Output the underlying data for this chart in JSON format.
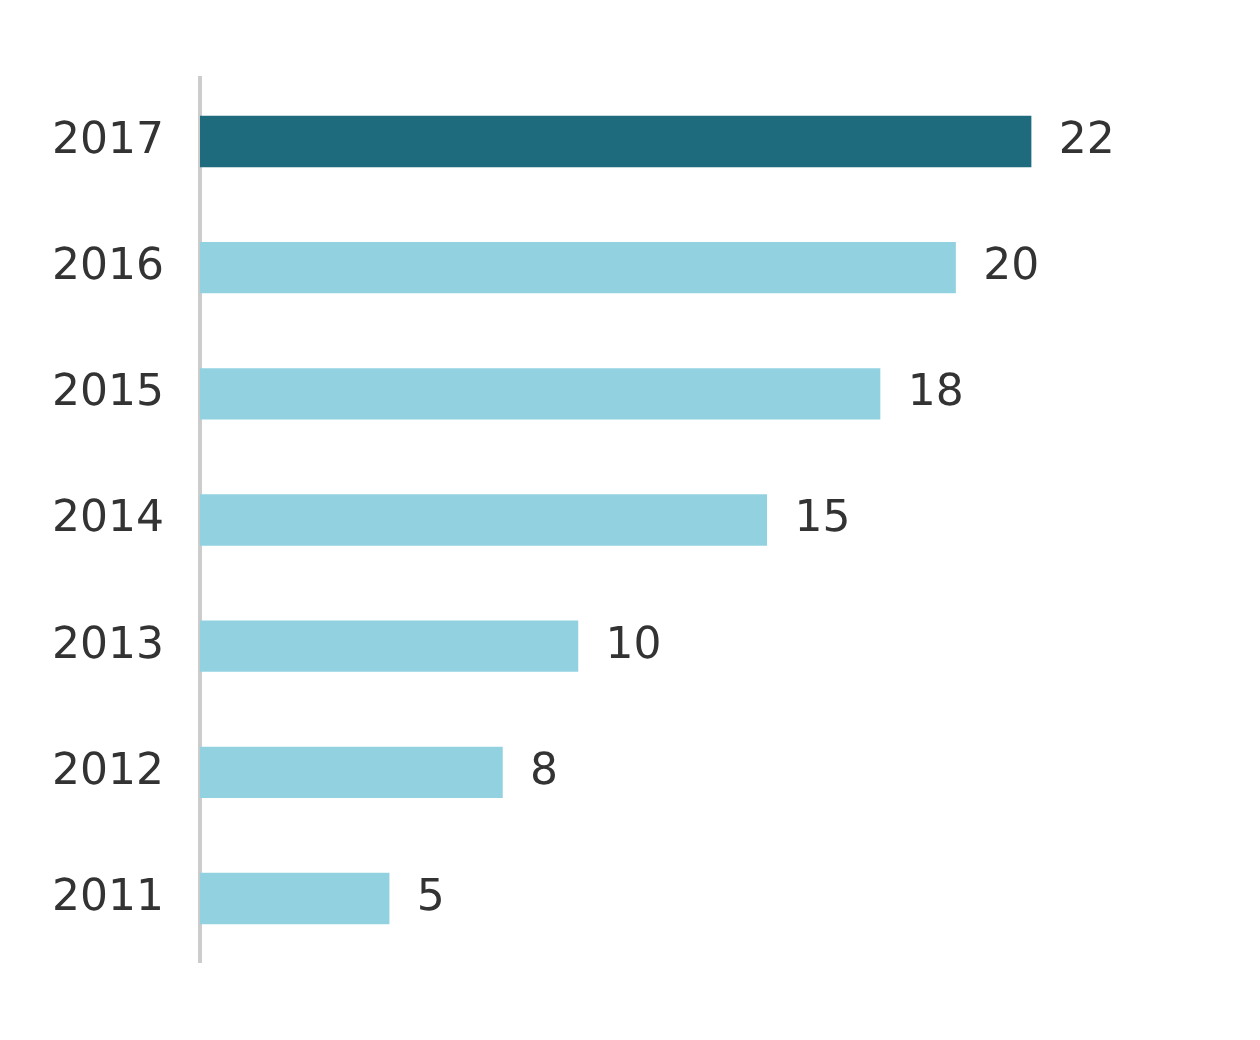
{
  "chart_data": {
    "type": "bar",
    "orientation": "horizontal",
    "categories": [
      "2017",
      "2016",
      "2015",
      "2014",
      "2013",
      "2012",
      "2011"
    ],
    "values": [
      22,
      20,
      18,
      15,
      10,
      8,
      5
    ],
    "colors": [
      "#1d6b7d",
      "#92d2e0",
      "#92d2e0",
      "#92d2e0",
      "#92d2e0",
      "#92d2e0",
      "#92d2e0"
    ],
    "data_labels": true,
    "grid": false,
    "legend": false,
    "tick_labels": "y"
  }
}
